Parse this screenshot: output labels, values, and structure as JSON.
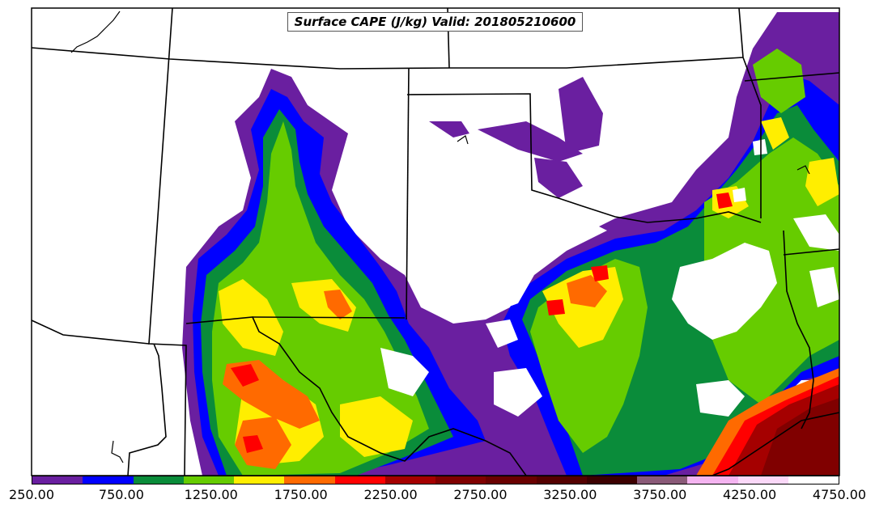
{
  "title": "Surface CAPE (J/kg) Valid: 201805210600",
  "colorbar": {
    "colors": [
      "#6a1fa0",
      "#0000ff",
      "#0a8c3a",
      "#66cc00",
      "#ffee00",
      "#ff6a00",
      "#ff0000",
      "#a50000",
      "#800000",
      "#6a0000",
      "#550000",
      "#3d0000",
      "#8a5a78",
      "#f4b4f0",
      "#fbd8f8",
      "#ffffff"
    ],
    "tick_labels": [
      "250.00",
      "750.00",
      "1250.00",
      "1750.00",
      "2250.00",
      "2750.00",
      "3250.00",
      "3750.00",
      "4250.00",
      "4750.00"
    ]
  }
}
